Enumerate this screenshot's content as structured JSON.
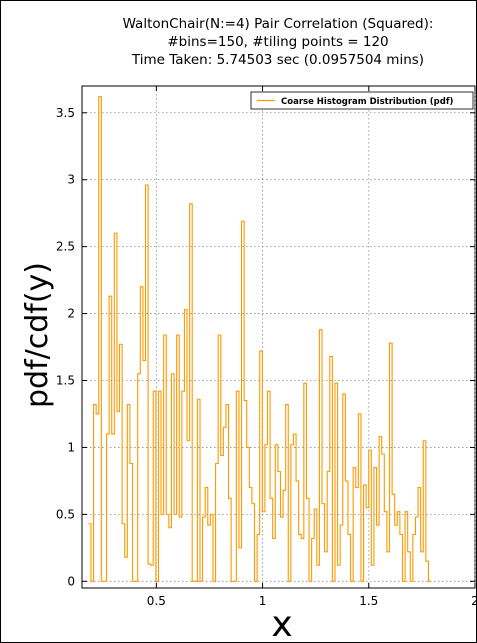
{
  "chart_data": {
    "type": "line",
    "title_lines": [
      "WaltonChair(N:=4) Pair Correlation (Squared):",
      "#bins=150, #tiling points = 120",
      "Time Taken: 5.74503 sec (0.0957504 mins)"
    ],
    "xlabel": "x",
    "ylabel": "pdf/cdf(y)",
    "xlim": [
      0.15,
      2.0
    ],
    "ylim": [
      -0.05,
      3.7
    ],
    "xticks": [
      0.5,
      1,
      1.5,
      2
    ],
    "xtick_labels": [
      "0.5",
      "1",
      "1.5",
      "2"
    ],
    "yticks": [
      0,
      0.5,
      1,
      1.5,
      2,
      2.5,
      3,
      3.5
    ],
    "ytick_labels": [
      "0",
      "0.5",
      "1",
      "1.5",
      "2",
      "2.5",
      "3",
      "3.5"
    ],
    "grid": true,
    "legend_position": "top-right",
    "series": [
      {
        "name": "Coarse Histogram Distribution (pdf)",
        "color": "#ff9900",
        "bin_start": 0.18,
        "bin_width": 0.01222,
        "values": [
          0.43,
          0.0,
          1.32,
          1.25,
          3.62,
          0.0,
          0.0,
          1.1,
          2.13,
          1.1,
          2.6,
          1.27,
          1.77,
          0.43,
          0.18,
          1.32,
          0.88,
          0.0,
          0.0,
          1.55,
          2.2,
          1.65,
          2.96,
          0.13,
          0.12,
          1.42,
          0.0,
          1.42,
          0.5,
          1.84,
          0.5,
          0.4,
          1.55,
          0.5,
          1.84,
          0.48,
          1.42,
          2.03,
          1.05,
          2.82,
          0.0,
          0.0,
          1.36,
          0.0,
          0.48,
          0.7,
          0.42,
          0.5,
          0.0,
          0.88,
          1.84,
          0.94,
          1.15,
          1.32,
          0.62,
          0.0,
          0.0,
          1.42,
          0.25,
          2.69,
          1.35,
          1.0,
          0.7,
          0.58,
          0.0,
          0.35,
          1.72,
          0.52,
          1.02,
          1.42,
          0.62,
          0.32,
          1.02,
          0.82,
          0.48,
          0.68,
          1.32,
          0.0,
          1.02,
          1.1,
          0.75,
          0.35,
          0.32,
          1.48,
          0.62,
          0.0,
          0.32,
          0.54,
          0.12,
          1.88,
          0.58,
          0.22,
          0.82,
          1.68,
          0.0,
          1.48,
          0.12,
          0.42,
          1.4,
          0.75,
          0.35,
          0.0,
          0.85,
          0.7,
          1.25,
          0.0,
          0.72,
          0.55,
          0.98,
          0.12,
          0.85,
          0.42,
          1.08,
          0.95,
          0.52,
          0.22,
          1.78,
          0.65,
          0.42,
          0.52,
          0.35,
          0.0,
          0.52,
          0.22,
          0.0,
          0.35,
          0.48,
          0.7,
          0.22,
          1.05,
          0.15,
          0.0
        ]
      }
    ]
  }
}
